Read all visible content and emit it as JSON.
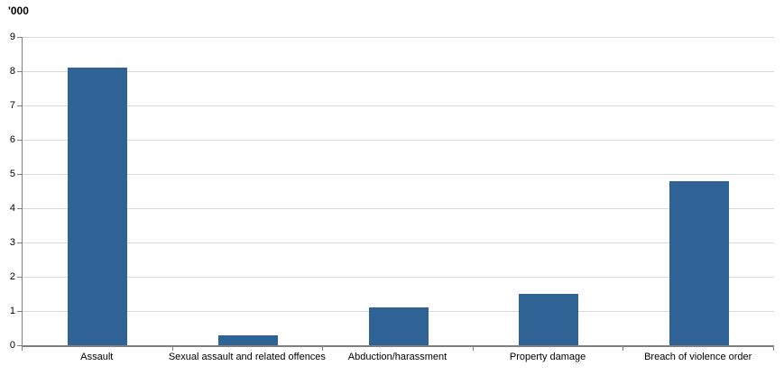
{
  "chart_data": {
    "type": "bar",
    "categories": [
      "Assault",
      "Sexual assault and related offences",
      "Abduction/harassment",
      "Property damage",
      "Breach of violence order"
    ],
    "values": [
      8.1,
      0.3,
      1.1,
      1.5,
      4.8
    ],
    "title": "",
    "xlabel": "",
    "ylabel": "'000",
    "ylim": [
      0,
      9
    ],
    "ytick_interval": 1,
    "grid": true,
    "legend": false,
    "bar_color": "#2F6396",
    "gridline_color": "#D9D9D9",
    "axis_color": "#808080",
    "text_color": "#000000"
  }
}
